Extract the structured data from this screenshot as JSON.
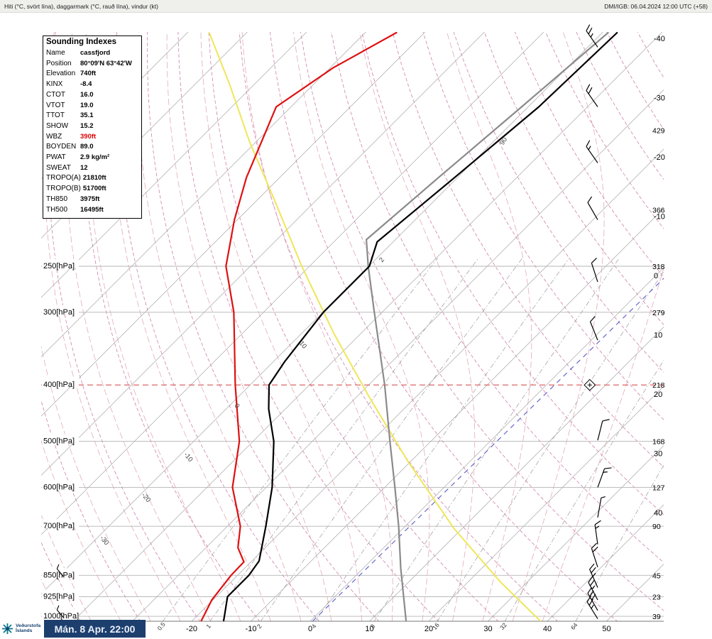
{
  "header": {
    "left": "Hiti (°C, svört lína), daggarmark (°C, rauð lína), vindur (kt)",
    "right": "DMI/IGB: 06.04.2024 12:00 UTC (+58)"
  },
  "indexes": {
    "title": "Sounding Indexes",
    "rows": [
      {
        "label": "Name",
        "value": "cassfjord"
      },
      {
        "label": "Position",
        "value": "80°09'N 63°42'W"
      },
      {
        "label": "Elevation",
        "value": "740ft"
      },
      {
        "label": "KINX",
        "value": "-8.4"
      },
      {
        "label": "CTOT",
        "value": "16.0"
      },
      {
        "label": "VTOT",
        "value": "19.0"
      },
      {
        "label": "TTOT",
        "value": "35.1"
      },
      {
        "label": "SHOW",
        "value": "15.2"
      },
      {
        "label": "WBZ",
        "value": "390ft",
        "color": "#dd0000"
      },
      {
        "label": "BOYDEN",
        "value": "89.0"
      },
      {
        "label": "PWAT",
        "value": "2.9 kg/m²"
      },
      {
        "label": "SWEAT",
        "value": "12"
      },
      {
        "label": "TROPO(A)",
        "value": "21810ft"
      },
      {
        "label": "TROPO(B)",
        "value": "51700ft"
      },
      {
        "label": "TH850",
        "value": "3975ft"
      },
      {
        "label": "TH500",
        "value": "16495ft"
      }
    ]
  },
  "footer": {
    "logo_line1": "Veðurstofa",
    "logo_line2": "Íslands",
    "datetime": "Mán. 8 Apr. 22:00"
  },
  "chart_data": {
    "type": "skewt_log_p_sounding",
    "pressure_range_hpa": [
      100,
      1020
    ],
    "grid": "skewed isotherms 45deg, dry/moist adiabats, mixing-ratio lines",
    "pressure_levels": [
      {
        "p": 250,
        "label": "250[hPa]"
      },
      {
        "p": 300,
        "label": "300[hPa]"
      },
      {
        "p": 400,
        "label": "400[hPa]"
      },
      {
        "p": 500,
        "label": "500[hPa]"
      },
      {
        "p": 600,
        "label": "600[hPa]"
      },
      {
        "p": 700,
        "label": "700[hPa]"
      },
      {
        "p": 850,
        "label": "850[hPa]"
      },
      {
        "p": 925,
        "label": "925[hPa]"
      },
      {
        "p": 1000,
        "label": "1000[hPa]"
      }
    ],
    "bottom_temp_labels": [
      -20,
      -10,
      0,
      10,
      20,
      30,
      40,
      50
    ],
    "right_isotherm_labels": [
      -40,
      -30,
      -20,
      -10,
      0,
      10,
      20,
      30,
      40
    ],
    "right_level_labels": [
      {
        "p": 146,
        "label": "429"
      },
      {
        "p": 200,
        "label": "366"
      },
      {
        "p": 250,
        "label": "318"
      },
      {
        "p": 300,
        "label": "279"
      },
      {
        "p": 400,
        "label": "218"
      },
      {
        "p": 500,
        "label": "168"
      },
      {
        "p": 600,
        "label": "127"
      },
      {
        "p": 700,
        "label": "90"
      },
      {
        "p": 850,
        "label": "45"
      },
      {
        "p": 925,
        "label": "23"
      },
      {
        "p": 1000,
        "label": "39"
      }
    ],
    "mixing_ratio_lines_gkg": [
      0.5,
      1,
      2,
      4,
      8,
      16,
      32,
      64
    ],
    "line_labels": [
      {
        "p": 744,
        "T": -48.4,
        "label": "-30",
        "rot": 50
      },
      {
        "p": 628,
        "T": -48.6,
        "label": "-20",
        "rot": 50
      },
      {
        "p": 535,
        "T": -48.3,
        "label": "-10",
        "rot": 50
      },
      {
        "p": 437,
        "T": -48.7,
        "label": "0",
        "rot": 50
      },
      {
        "p": 343,
        "T": -47.9,
        "label": "10",
        "rot": 50
      },
      {
        "p": 245,
        "T": -48.4,
        "label": "2",
        "rot": -50
      },
      {
        "p": 153,
        "T": -47.9,
        "label": "90",
        "rot": -58
      }
    ],
    "tropopause_line": {
      "p": 400,
      "color": "#d95555"
    },
    "marker_diamond": {
      "p": 400,
      "T": 7.3
    },
    "series": {
      "temperature": {
        "name": "Hiti (svört lína)",
        "color": "#000000",
        "points": [
          [
            1020,
            -14.6
          ],
          [
            1000,
            -15.3
          ],
          [
            925,
            -18.1
          ],
          [
            850,
            -18.1
          ],
          [
            803,
            -18.8
          ],
          [
            700,
            -23.5
          ],
          [
            600,
            -29.0
          ],
          [
            500,
            -36.5
          ],
          [
            440,
            -42.8
          ],
          [
            400,
            -46.8
          ],
          [
            365,
            -48.1
          ],
          [
            300,
            -49.9
          ],
          [
            250,
            -49.9
          ],
          [
            227,
            -52.7
          ],
          [
            176,
            -50.5
          ],
          [
            133,
            -48.2
          ],
          [
            99,
            -47.5
          ]
        ]
      },
      "dewpoint": {
        "name": "Daggarmark (rauð lína)",
        "color": "#dd1111",
        "points": [
          [
            1020,
            -18.4
          ],
          [
            937,
            -20.2
          ],
          [
            850,
            -21.1
          ],
          [
            806,
            -21.2
          ],
          [
            762,
            -24.6
          ],
          [
            700,
            -27.8
          ],
          [
            600,
            -35.7
          ],
          [
            500,
            -42.3
          ],
          [
            400,
            -52.5
          ],
          [
            300,
            -65.0
          ],
          [
            250,
            -74.1
          ],
          [
            208,
            -80.5
          ],
          [
            176,
            -85.6
          ],
          [
            133,
            -92.5
          ],
          [
            114,
            -89.5
          ],
          [
            99,
            -84.7
          ]
        ]
      },
      "gray_profile": {
        "name": "gray reference profile",
        "color": "#8a8a8a",
        "points": [
          [
            1020,
            16.2
          ],
          [
            826,
            6.3
          ],
          [
            700,
            -1.1
          ],
          [
            600,
            -8.3
          ],
          [
            500,
            -16.9
          ],
          [
            400,
            -27.3
          ],
          [
            300,
            -41.3
          ],
          [
            250,
            -50.1
          ],
          [
            225,
            -54.9
          ],
          [
            176,
            -53.2
          ],
          [
            133,
            -51.1
          ],
          [
            99,
            -49.0
          ]
        ]
      },
      "yellow_line": {
        "name": "yellow reference line",
        "color": "#efe658",
        "points": [
          [
            1020,
            38.9
          ],
          [
            873,
            25.5
          ],
          [
            707,
            8.7
          ],
          [
            542,
            -10.4
          ],
          [
            420,
            -27.8
          ],
          [
            326,
            -44.6
          ],
          [
            250,
            -61.3
          ],
          [
            191,
            -77.5
          ],
          [
            153,
            -91.0
          ],
          [
            122,
            -104.0
          ],
          [
            99,
            -116.4
          ]
        ]
      },
      "blue_dashed": {
        "name": "blue dashed line",
        "color": "#6666cc",
        "points": [
          [
            1020,
            0.4
          ],
          [
            262,
            1.8
          ]
        ]
      }
    },
    "wind_barbs": [
      {
        "p": 105,
        "spd": 25,
        "dir": -35
      },
      {
        "p": 133,
        "spd": 20,
        "dir": -35
      },
      {
        "p": 166,
        "spd": 15,
        "dir": -35
      },
      {
        "p": 208,
        "spd": 10,
        "dir": -30
      },
      {
        "p": 266,
        "spd": 10,
        "dir": -18
      },
      {
        "p": 335,
        "spd": 10,
        "dir": -22
      },
      {
        "p": 498,
        "spd": 10,
        "dir": 14
      },
      {
        "p": 600,
        "spd": 15,
        "dir": 20
      },
      {
        "p": 676,
        "spd": 5,
        "dir": 10
      },
      {
        "p": 752,
        "spd": 15,
        "dir": -8
      },
      {
        "p": 823,
        "spd": 20,
        "dir": -18
      },
      {
        "p": 892,
        "spd": 25,
        "dir": -24
      },
      {
        "p": 937,
        "spd": 25,
        "dir": -28
      },
      {
        "p": 977,
        "spd": 30,
        "dir": -30
      },
      {
        "p": 1010,
        "spd": 25,
        "dir": -32
      }
    ],
    "left_markers": [
      {
        "p": 850
      },
      {
        "p": 1000
      }
    ]
  }
}
